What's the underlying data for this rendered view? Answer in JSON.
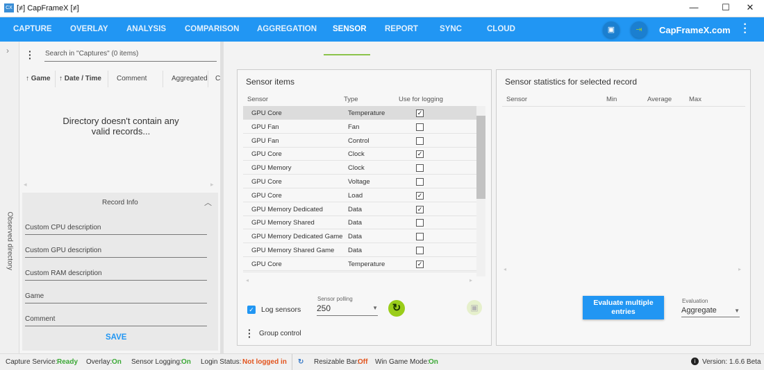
{
  "window": {
    "title": "[≠] CapFrameX [≠]",
    "logo": "CX"
  },
  "nav": {
    "tabs": [
      "CAPTURE",
      "OVERLAY",
      "ANALYSIS",
      "COMPARISON",
      "AGGREGATION",
      "SENSOR",
      "REPORT",
      "SYNC",
      "CLOUD"
    ],
    "active": "SENSOR",
    "site": "CapFrameX.com",
    "accent": "#2196f3",
    "underline": "#8bc34a"
  },
  "left": {
    "side_label": "Observed directory",
    "search_placeholder": "Search in \"Captures\" (0 items)",
    "columns": [
      "Game",
      "Date / Time",
      "Comment",
      "Aggregated",
      "C"
    ],
    "empty": "Directory doesn't contain any valid records...",
    "record_info": "Record Info",
    "fields": [
      "Custom CPU description",
      "Custom GPU description",
      "Custom RAM description",
      "Game",
      "Comment"
    ],
    "save": "SAVE"
  },
  "sensor": {
    "title": "Sensor items",
    "headers": [
      "Sensor",
      "Type",
      "Use for logging"
    ],
    "rows": [
      [
        "GPU Core",
        "Temperature",
        true
      ],
      [
        "GPU Fan",
        "Fan",
        false
      ],
      [
        "GPU Fan",
        "Control",
        false
      ],
      [
        "GPU Core",
        "Clock",
        true
      ],
      [
        "GPU Memory",
        "Clock",
        false
      ],
      [
        "GPU Core",
        "Voltage",
        false
      ],
      [
        "GPU Core",
        "Load",
        true
      ],
      [
        "GPU Memory Dedicated",
        "Data",
        true
      ],
      [
        "GPU Memory Shared",
        "Data",
        false
      ],
      [
        "GPU Memory Dedicated Game",
        "Data",
        false
      ],
      [
        "GPU Memory Shared Game",
        "Data",
        false
      ],
      [
        "GPU Core",
        "Temperature",
        true
      ]
    ],
    "log_sensors": "Log sensors",
    "log_checked": true,
    "polling_label": "Sensor polling",
    "polling_value": "250",
    "group_control": "Group control"
  },
  "stats": {
    "title": "Sensor statistics for selected record",
    "headers": [
      "Sensor",
      "Min",
      "Average",
      "Max"
    ],
    "evaluate": "Evaluate multiple entries",
    "evaluation_label": "Evaluation",
    "evaluation_value": "Aggregate"
  },
  "status": {
    "capture_label": "Capture Service:",
    "capture": "Ready",
    "overlay_label": "Overlay:",
    "overlay": "On",
    "logging_label": "Sensor Logging:",
    "logging": "On",
    "login_label": "Login Status:",
    "login": "Not logged in",
    "rebar_label": "Resizable Bar:",
    "rebar": "Off",
    "wgm_label": "Win Game Mode:",
    "wgm": "On",
    "version": "Version: 1.6.6 Beta"
  }
}
